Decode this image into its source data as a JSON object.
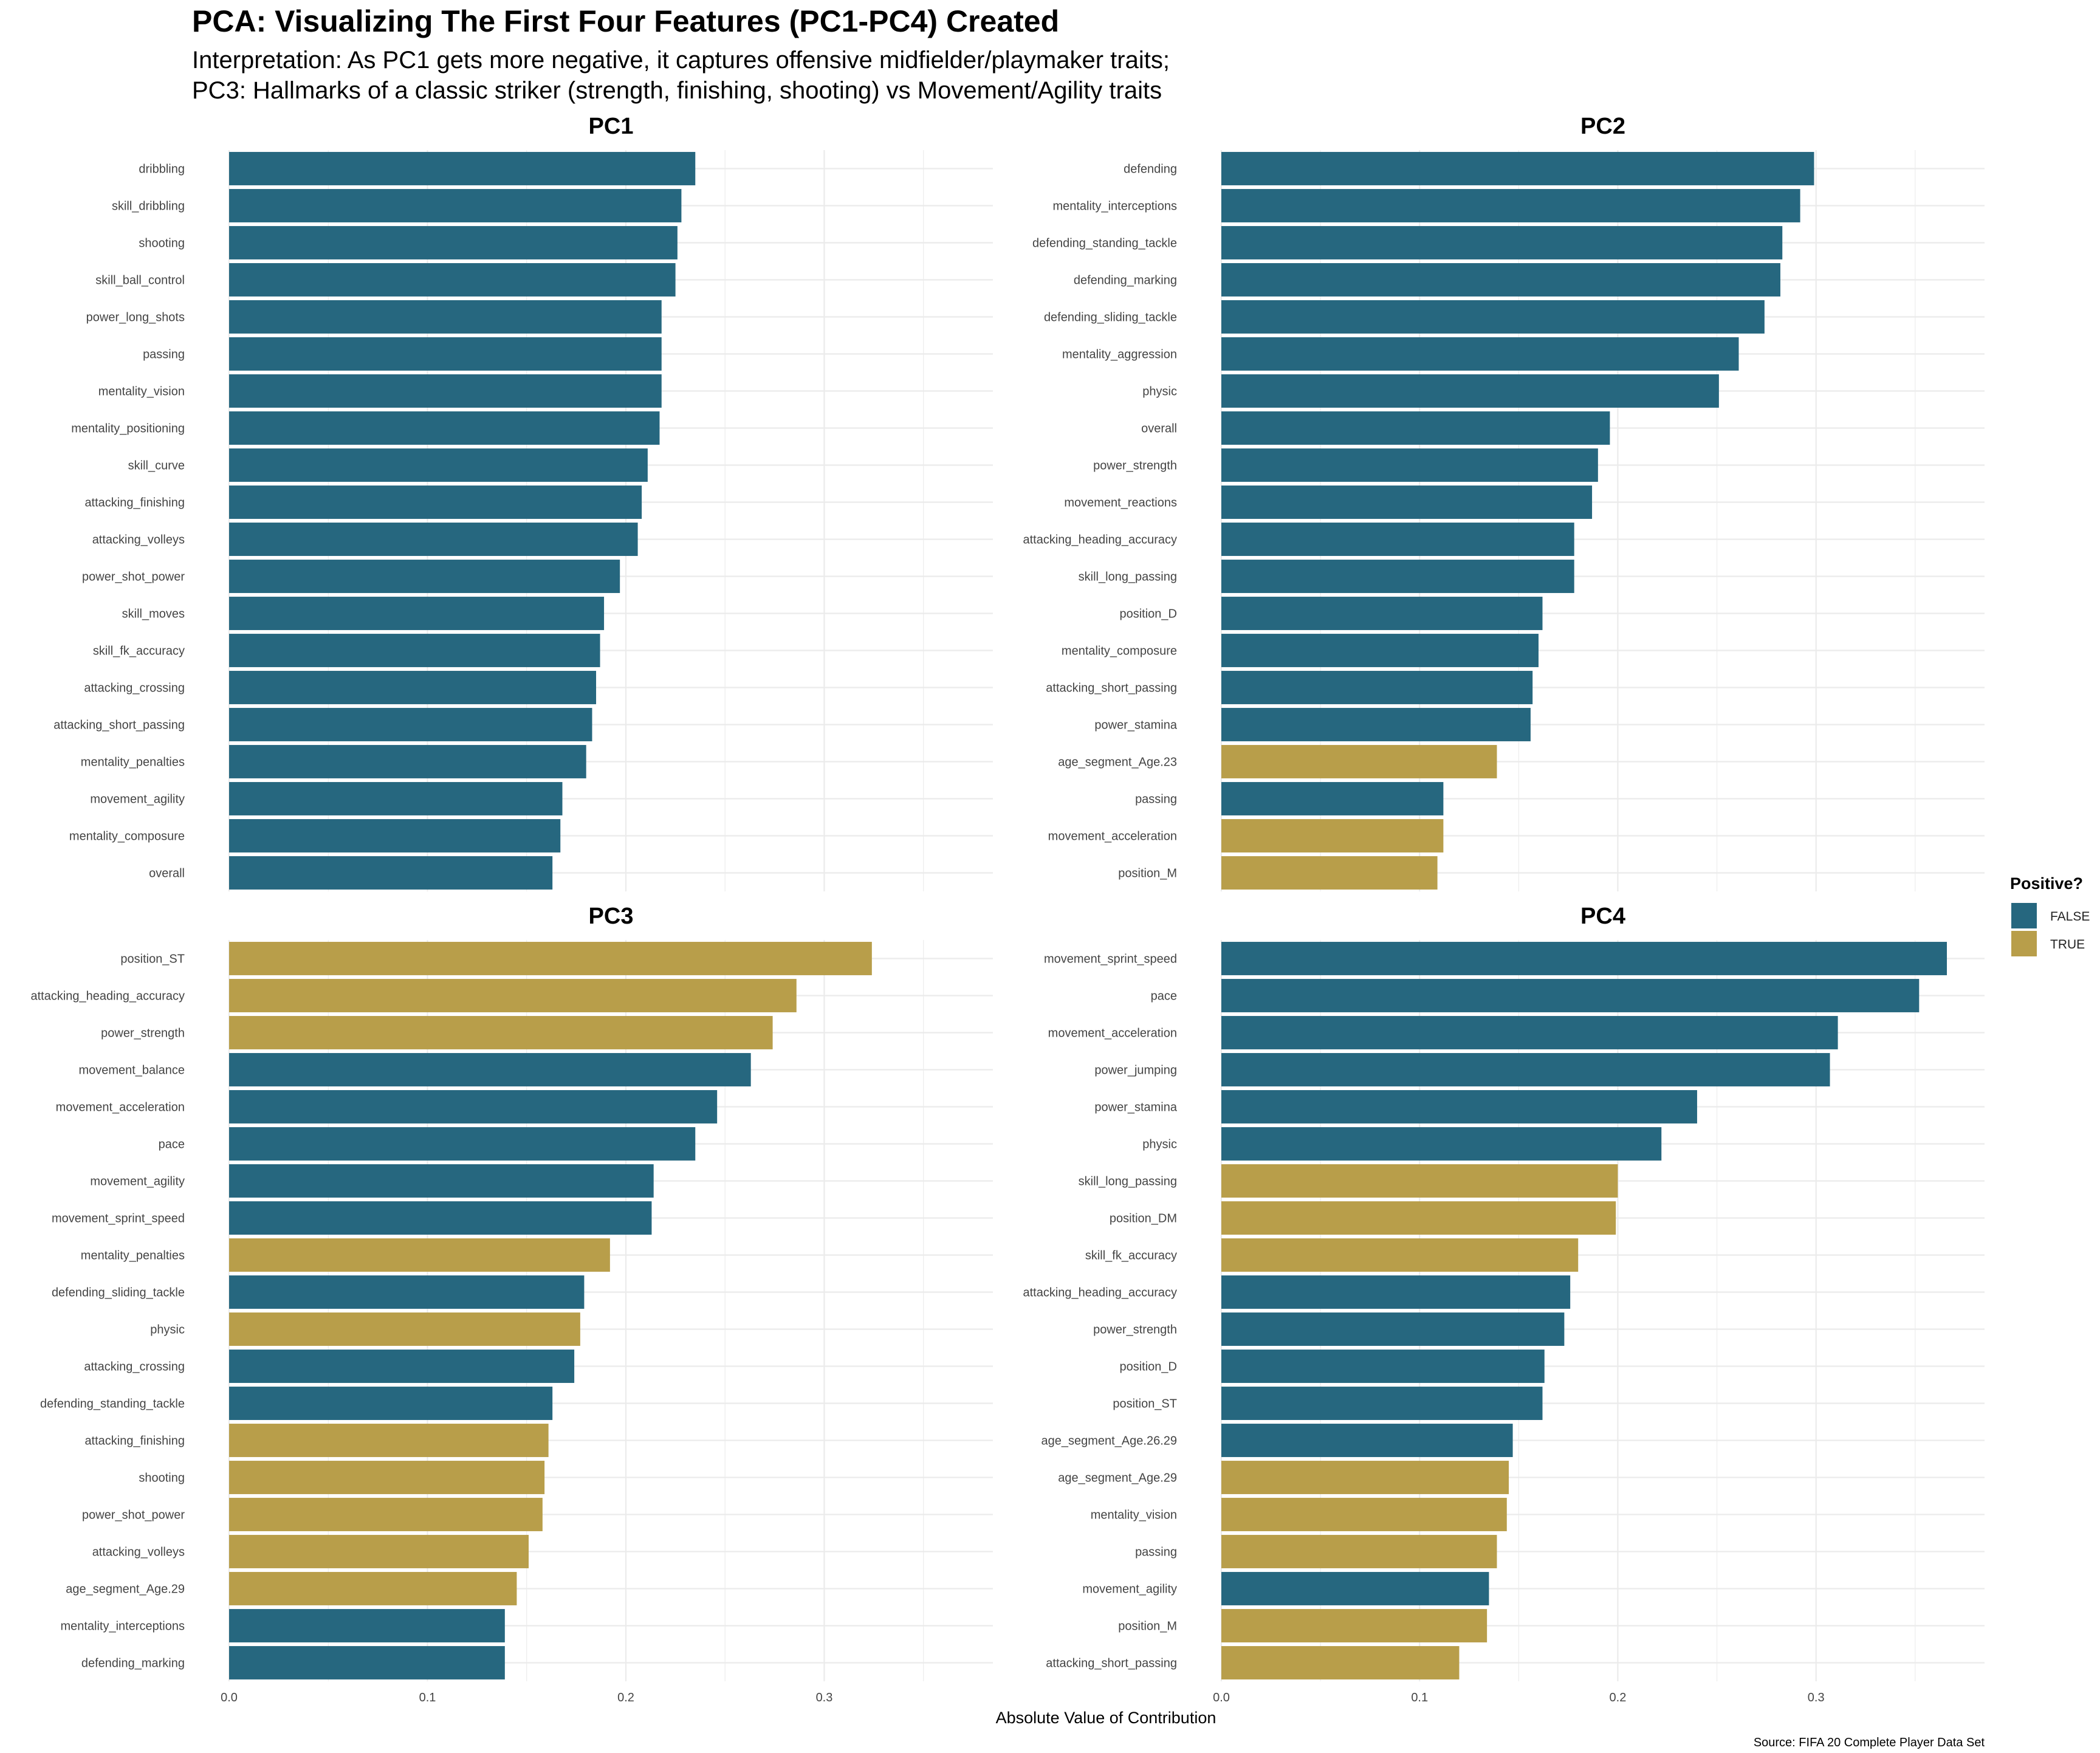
{
  "colors": {
    "false": "#26677f",
    "true": "#b89e4a",
    "grid": "#ebebeb",
    "background": "#ffffff"
  },
  "chart_data": {
    "type": "bar",
    "orientation": "horizontal",
    "title": "PCA: Visualizing The First Four Features (PC1-PC4) Created",
    "subtitle_lines": [
      "Interpretation: As PC1 gets more negative, it captures offensive midfielder/playmaker traits;",
      "PC3: Hallmarks of a classic striker (strength, finishing, shooting) vs Movement/Agility traits"
    ],
    "xlabel": "Absolute Value of Contribution",
    "caption": "Source: FIFA 20 Complete Player Data Set",
    "xlim": [
      0,
      0.385
    ],
    "x_ticks": [
      0.0,
      0.1,
      0.2,
      0.3
    ],
    "x_tick_labels": [
      "0.0",
      "0.1",
      "0.2",
      "0.3"
    ],
    "grid": true,
    "legend": {
      "title": "Positive?",
      "position": "right",
      "entries": [
        {
          "label": "FALSE",
          "key": "false"
        },
        {
          "label": "TRUE",
          "key": "true"
        }
      ]
    },
    "panels": [
      {
        "name": "PC1",
        "bars": [
          {
            "label": "dribbling",
            "value": 0.235,
            "positive": false
          },
          {
            "label": "skill_dribbling",
            "value": 0.228,
            "positive": false
          },
          {
            "label": "shooting",
            "value": 0.226,
            "positive": false
          },
          {
            "label": "skill_ball_control",
            "value": 0.225,
            "positive": false
          },
          {
            "label": "power_long_shots",
            "value": 0.218,
            "positive": false
          },
          {
            "label": "passing",
            "value": 0.218,
            "positive": false
          },
          {
            "label": "mentality_vision",
            "value": 0.218,
            "positive": false
          },
          {
            "label": "mentality_positioning",
            "value": 0.217,
            "positive": false
          },
          {
            "label": "skill_curve",
            "value": 0.211,
            "positive": false
          },
          {
            "label": "attacking_finishing",
            "value": 0.208,
            "positive": false
          },
          {
            "label": "attacking_volleys",
            "value": 0.206,
            "positive": false
          },
          {
            "label": "power_shot_power",
            "value": 0.197,
            "positive": false
          },
          {
            "label": "skill_moves",
            "value": 0.189,
            "positive": false
          },
          {
            "label": "skill_fk_accuracy",
            "value": 0.187,
            "positive": false
          },
          {
            "label": "attacking_crossing",
            "value": 0.185,
            "positive": false
          },
          {
            "label": "attacking_short_passing",
            "value": 0.183,
            "positive": false
          },
          {
            "label": "mentality_penalties",
            "value": 0.18,
            "positive": false
          },
          {
            "label": "movement_agility",
            "value": 0.168,
            "positive": false
          },
          {
            "label": "mentality_composure",
            "value": 0.167,
            "positive": false
          },
          {
            "label": "overall",
            "value": 0.163,
            "positive": false
          }
        ]
      },
      {
        "name": "PC2",
        "bars": [
          {
            "label": "defending",
            "value": 0.299,
            "positive": false
          },
          {
            "label": "mentality_interceptions",
            "value": 0.292,
            "positive": false
          },
          {
            "label": "defending_standing_tackle",
            "value": 0.283,
            "positive": false
          },
          {
            "label": "defending_marking",
            "value": 0.282,
            "positive": false
          },
          {
            "label": "defending_sliding_tackle",
            "value": 0.274,
            "positive": false
          },
          {
            "label": "mentality_aggression",
            "value": 0.261,
            "positive": false
          },
          {
            "label": "physic",
            "value": 0.251,
            "positive": false
          },
          {
            "label": "overall",
            "value": 0.196,
            "positive": false
          },
          {
            "label": "power_strength",
            "value": 0.19,
            "positive": false
          },
          {
            "label": "movement_reactions",
            "value": 0.187,
            "positive": false
          },
          {
            "label": "attacking_heading_accuracy",
            "value": 0.178,
            "positive": false
          },
          {
            "label": "skill_long_passing",
            "value": 0.178,
            "positive": false
          },
          {
            "label": "position_D",
            "value": 0.162,
            "positive": false
          },
          {
            "label": "mentality_composure",
            "value": 0.16,
            "positive": false
          },
          {
            "label": "attacking_short_passing",
            "value": 0.157,
            "positive": false
          },
          {
            "label": "power_stamina",
            "value": 0.156,
            "positive": false
          },
          {
            "label": "age_segment_Age.23",
            "value": 0.139,
            "positive": true
          },
          {
            "label": "passing",
            "value": 0.112,
            "positive": false
          },
          {
            "label": "movement_acceleration",
            "value": 0.112,
            "positive": true
          },
          {
            "label": "position_M",
            "value": 0.109,
            "positive": true
          }
        ]
      },
      {
        "name": "PC3",
        "bars": [
          {
            "label": "position_ST",
            "value": 0.324,
            "positive": true
          },
          {
            "label": "attacking_heading_accuracy",
            "value": 0.286,
            "positive": true
          },
          {
            "label": "power_strength",
            "value": 0.274,
            "positive": true
          },
          {
            "label": "movement_balance",
            "value": 0.263,
            "positive": false
          },
          {
            "label": "movement_acceleration",
            "value": 0.246,
            "positive": false
          },
          {
            "label": "pace",
            "value": 0.235,
            "positive": false
          },
          {
            "label": "movement_agility",
            "value": 0.214,
            "positive": false
          },
          {
            "label": "movement_sprint_speed",
            "value": 0.213,
            "positive": false
          },
          {
            "label": "mentality_penalties",
            "value": 0.192,
            "positive": true
          },
          {
            "label": "defending_sliding_tackle",
            "value": 0.179,
            "positive": false
          },
          {
            "label": "physic",
            "value": 0.177,
            "positive": true
          },
          {
            "label": "attacking_crossing",
            "value": 0.174,
            "positive": false
          },
          {
            "label": "defending_standing_tackle",
            "value": 0.163,
            "positive": false
          },
          {
            "label": "attacking_finishing",
            "value": 0.161,
            "positive": true
          },
          {
            "label": "shooting",
            "value": 0.159,
            "positive": true
          },
          {
            "label": "power_shot_power",
            "value": 0.158,
            "positive": true
          },
          {
            "label": "attacking_volleys",
            "value": 0.151,
            "positive": true
          },
          {
            "label": "age_segment_Age.29",
            "value": 0.145,
            "positive": true
          },
          {
            "label": "mentality_interceptions",
            "value": 0.139,
            "positive": false
          },
          {
            "label": "defending_marking",
            "value": 0.139,
            "positive": false
          }
        ]
      },
      {
        "name": "PC4",
        "bars": [
          {
            "label": "movement_sprint_speed",
            "value": 0.366,
            "positive": false
          },
          {
            "label": "pace",
            "value": 0.352,
            "positive": false
          },
          {
            "label": "movement_acceleration",
            "value": 0.311,
            "positive": false
          },
          {
            "label": "power_jumping",
            "value": 0.307,
            "positive": false
          },
          {
            "label": "power_stamina",
            "value": 0.24,
            "positive": false
          },
          {
            "label": "physic",
            "value": 0.222,
            "positive": false
          },
          {
            "label": "skill_long_passing",
            "value": 0.2,
            "positive": true
          },
          {
            "label": "position_DM",
            "value": 0.199,
            "positive": true
          },
          {
            "label": "skill_fk_accuracy",
            "value": 0.18,
            "positive": true
          },
          {
            "label": "attacking_heading_accuracy",
            "value": 0.176,
            "positive": false
          },
          {
            "label": "power_strength",
            "value": 0.173,
            "positive": false
          },
          {
            "label": "position_D",
            "value": 0.163,
            "positive": false
          },
          {
            "label": "position_ST",
            "value": 0.162,
            "positive": false
          },
          {
            "label": "age_segment_Age.26.29",
            "value": 0.147,
            "positive": false
          },
          {
            "label": "age_segment_Age.29",
            "value": 0.145,
            "positive": true
          },
          {
            "label": "mentality_vision",
            "value": 0.144,
            "positive": true
          },
          {
            "label": "passing",
            "value": 0.139,
            "positive": true
          },
          {
            "label": "movement_agility",
            "value": 0.135,
            "positive": false
          },
          {
            "label": "position_M",
            "value": 0.134,
            "positive": true
          },
          {
            "label": "attacking_short_passing",
            "value": 0.12,
            "positive": true
          }
        ]
      }
    ]
  }
}
